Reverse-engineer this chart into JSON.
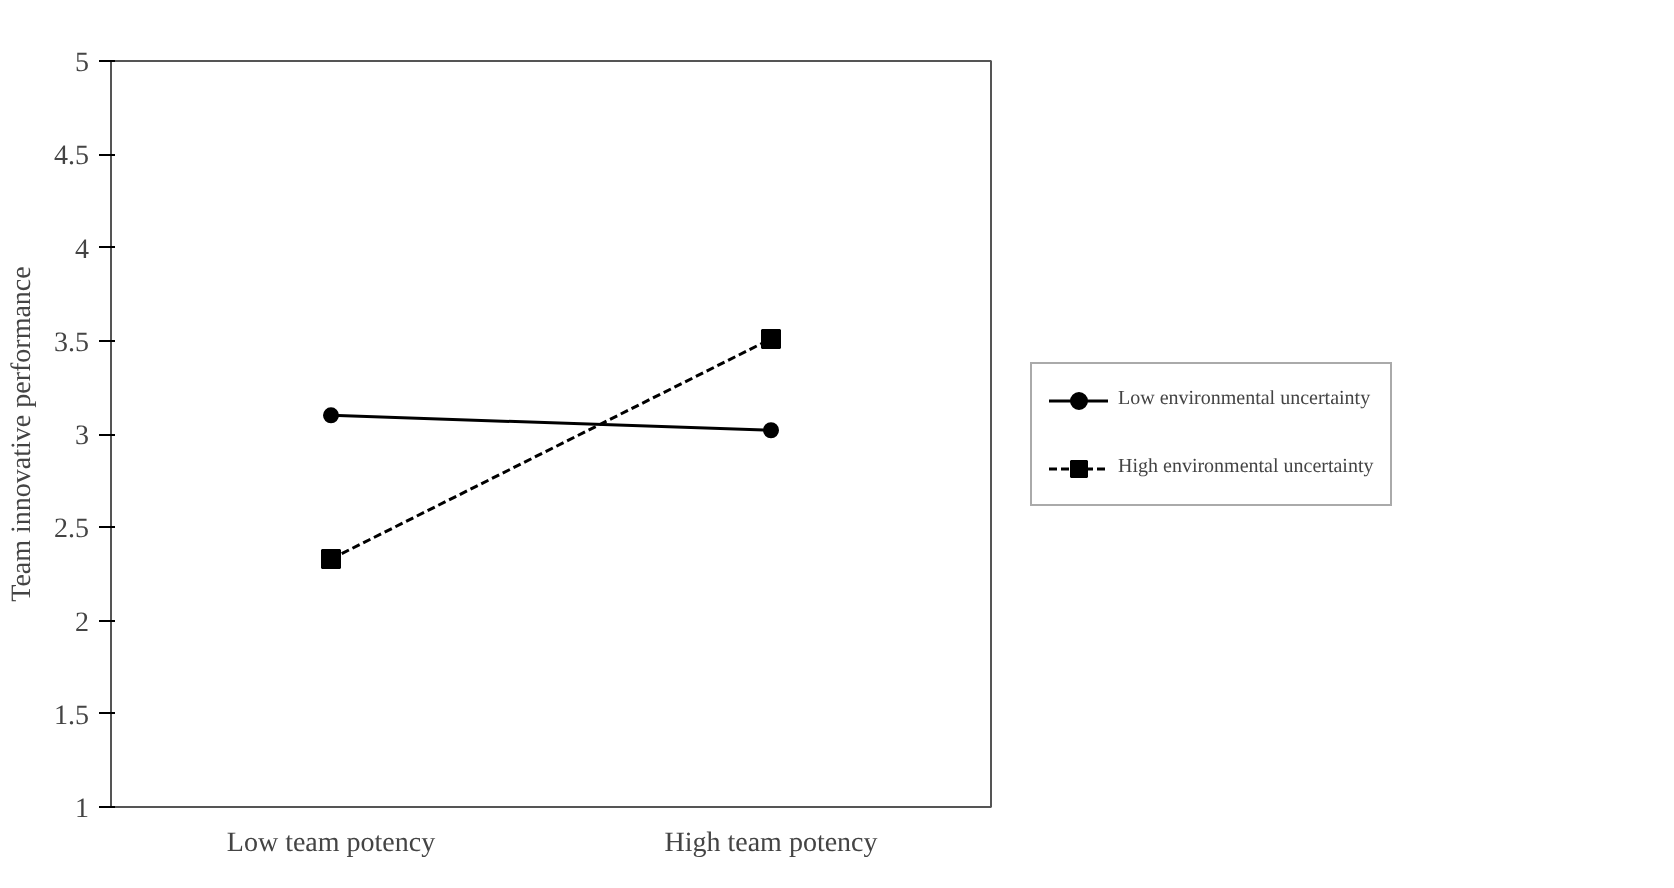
{
  "chart_data": {
    "type": "line",
    "ylabel": "Team innovative performance",
    "categories": [
      "Low team potency",
      "High team potency"
    ],
    "series": [
      {
        "name": "Low environmental uncertainty",
        "color": "#000000",
        "values": [
          3.1,
          3.02
        ],
        "marker": "circle",
        "line_style": "solid"
      },
      {
        "name": "High environmental uncertainty",
        "color": "#000000",
        "values": [
          2.33,
          3.51
        ],
        "marker": "square",
        "line_style": "dashed"
      }
    ],
    "ylim": [
      1,
      5
    ],
    "yticks": [
      1,
      1.5,
      2,
      2.5,
      3,
      3.5,
      4,
      4.5,
      5
    ],
    "grid": false,
    "legend": "right"
  }
}
